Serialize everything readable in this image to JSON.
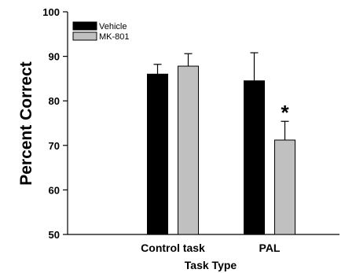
{
  "chart_data": {
    "type": "bar",
    "categories": [
      "Control task",
      "PAL"
    ],
    "series": [
      {
        "name": "Vehicle",
        "color": "#000000",
        "values": [
          86.0,
          84.5
        ],
        "errors": [
          2.2,
          6.3
        ]
      },
      {
        "name": "MK-801",
        "color": "#c0c0c0",
        "values": [
          87.8,
          71.2
        ],
        "errors": [
          2.8,
          4.2
        ]
      }
    ],
    "xlabel": "Task Type",
    "ylabel": "Percent Correct",
    "ylim": [
      50,
      100
    ],
    "yticks": [
      50,
      60,
      70,
      80,
      90,
      100
    ],
    "ytick_labels": [
      "50",
      "60",
      "70",
      "80",
      "90",
      "100"
    ],
    "grid": false,
    "legend_position": "top-left",
    "annotations": [
      {
        "text": "*",
        "category": "PAL",
        "series": "MK-801"
      }
    ]
  }
}
